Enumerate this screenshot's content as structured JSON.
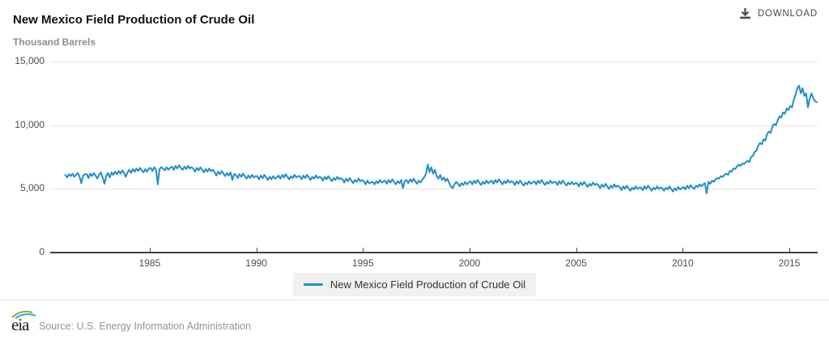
{
  "header": {
    "title": "New Mexico Field Production of Crude Oil",
    "download_label": "DOWNLOAD"
  },
  "footer": {
    "logo_text": "eia",
    "source": "Source: U.S. Energy Information Administration"
  },
  "chart_data": {
    "type": "line",
    "title": "New Mexico Field Production of Crude Oil",
    "ylabel": "Thousand Barrels",
    "xlabel": "",
    "frequency": "monthly",
    "start_year": 1981,
    "end": "2016-04",
    "xlim": [
      1980.33,
      2016.33
    ],
    "ylim": [
      0,
      15000
    ],
    "xticks": [
      1985,
      1990,
      1995,
      2000,
      2005,
      2010,
      2015
    ],
    "yticks": [
      0,
      5000,
      10000,
      15000
    ],
    "grid": true,
    "legend_position": "bottom",
    "axis_color": "#3f3f3f",
    "grid_color": "#e3e3e3",
    "series": [
      {
        "name": "New Mexico Field Production of Crude Oil",
        "color": "#1f8fc7",
        "values": [
          6100,
          5900,
          6150,
          6000,
          6200,
          5950,
          6100,
          6250,
          5950,
          5450,
          6050,
          6150,
          6150,
          5850,
          6200,
          6000,
          6250,
          6050,
          5800,
          6100,
          6300,
          5900,
          5400,
          6000,
          6250,
          5900,
          6300,
          6100,
          6350,
          6150,
          6400,
          6200,
          6450,
          6250,
          5950,
          6300,
          6500,
          6250,
          6550,
          6350,
          6600,
          6400,
          6650,
          6450,
          6300,
          6550,
          6350,
          6600,
          6650,
          6400,
          6700,
          6500,
          5350,
          6550,
          6700,
          6600,
          6450,
          6700,
          6500,
          6650,
          6750,
          6500,
          6800,
          6600,
          6850,
          6650,
          6500,
          6750,
          6550,
          6800,
          6600,
          6700,
          6600,
          6350,
          6650,
          6450,
          6700,
          6500,
          6300,
          6550,
          6350,
          6600,
          6400,
          6500,
          6300,
          6050,
          6350,
          6150,
          6400,
          6200,
          6000,
          6250,
          6050,
          6300,
          5700,
          6150,
          6100,
          5850,
          6150,
          5950,
          6200,
          6000,
          5800,
          6050,
          5850,
          6100,
          5900,
          6000,
          6000,
          5750,
          6050,
          5850,
          6100,
          5900,
          5700,
          5950,
          5750,
          6000,
          5800,
          5900,
          6050,
          5800,
          6100,
          5900,
          6150,
          5950,
          5750,
          6000,
          5850,
          6100,
          5900,
          6000,
          6000,
          5750,
          6050,
          5850,
          6100,
          5900,
          5700,
          5950,
          5800,
          6050,
          5850,
          5950,
          5900,
          5650,
          5950,
          5750,
          6000,
          5800,
          5600,
          5850,
          5700,
          5950,
          5750,
          5850,
          5750,
          5500,
          5800,
          5600,
          5850,
          5650,
          5450,
          5700,
          5550,
          5800,
          5600,
          5700,
          5600,
          5350,
          5650,
          5450,
          5500,
          5550,
          5350,
          5600,
          5450,
          5700,
          5500,
          5600,
          5650,
          5400,
          5700,
          5500,
          5750,
          5550,
          5350,
          5600,
          5450,
          5700,
          5050,
          5600,
          5700,
          5450,
          5750,
          5550,
          5800,
          5600,
          5400,
          5650,
          5500,
          5750,
          5900,
          6200,
          6900,
          6300,
          6700,
          6200,
          6500,
          6000,
          5800,
          6100,
          5700,
          5900,
          5600,
          5800,
          5500,
          5200,
          5050,
          5350,
          5550,
          5400,
          5200,
          5450,
          5300,
          5550,
          5350,
          5500,
          5600,
          5350,
          5650,
          5450,
          5700,
          5500,
          5300,
          5550,
          5400,
          5650,
          5450,
          5550,
          5650,
          5400,
          5700,
          5500,
          5750,
          5550,
          5350,
          5600,
          5450,
          5700,
          5500,
          5600,
          5550,
          5300,
          5600,
          5400,
          5650,
          5450,
          5250,
          5500,
          5350,
          5600,
          5400,
          5500,
          5600,
          5350,
          5650,
          5450,
          5700,
          5500,
          5300,
          5550,
          5400,
          5650,
          5450,
          5550,
          5550,
          5300,
          5600,
          5400,
          5650,
          5450,
          5250,
          5500,
          5350,
          5550,
          5350,
          5450,
          5450,
          5200,
          5500,
          5300,
          5550,
          5350,
          5150,
          5400,
          5250,
          5500,
          5300,
          5400,
          5300,
          5050,
          5350,
          5150,
          5400,
          5200,
          5000,
          5250,
          5100,
          5350,
          5150,
          5250,
          5150,
          4900,
          5200,
          5000,
          5250,
          5050,
          4850,
          5100,
          4950,
          5200,
          5000,
          5100,
          5100,
          4900,
          5200,
          5000,
          5250,
          5050,
          4850,
          5100,
          4950,
          5200,
          5000,
          5100,
          5050,
          4850,
          5100,
          4950,
          5200,
          5000,
          4800,
          5050,
          4900,
          5150,
          4950,
          5050,
          5150,
          4950,
          5250,
          5050,
          5300,
          5100,
          5000,
          5250,
          5150,
          5350,
          5200,
          5350,
          5450,
          4650,
          5550,
          5400,
          5650,
          5550,
          5750,
          5850,
          5800,
          6000,
          5950,
          6100,
          6200,
          6100,
          6400,
          6350,
          6600,
          6550,
          6750,
          6900,
          6800,
          7000,
          6950,
          7100,
          7200,
          7100,
          7500,
          7600,
          7900,
          8000,
          8400,
          8600,
          8500,
          8900,
          8800,
          9300,
          9500,
          9400,
          9900,
          10100,
          10000,
          10400,
          10700,
          10600,
          11000,
          10900,
          11300,
          11200,
          11500,
          11400,
          12000,
          12400,
          12900,
          13100,
          12500,
          12900,
          12300,
          12500,
          11400,
          12100,
          12500,
          12100,
          11900,
          11800
        ]
      }
    ]
  }
}
